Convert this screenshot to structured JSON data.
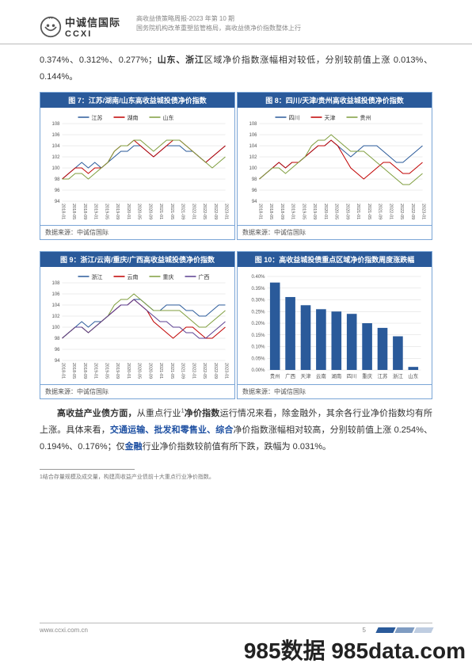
{
  "header": {
    "logo_cn": "中诚信国际",
    "logo_en": "CCXI",
    "line1": "高收益债策略周报-2023 年第 10 期",
    "line2": "国务院机构改革重塑监管格局，高收益债净价指数整体上行"
  },
  "para1": {
    "prefix": "0.374%、0.312%、0.277%；",
    "bold1": "山东、浙江",
    "mid": "区域净价指数涨幅相对较低，分别较前值上涨 0.013%、0.144%。"
  },
  "charts_top": [
    {
      "title": "图 7：江苏/湖南/山东高收益城投债净价指数",
      "type": "line",
      "ylim": [
        94,
        108
      ],
      "ytick_step": 2,
      "series": [
        {
          "name": "江苏",
          "color": "#2a5a9a",
          "vals": [
            98,
            99,
            100,
            101,
            100,
            101,
            100,
            101,
            102,
            103,
            103,
            104,
            104,
            103,
            102,
            103,
            104,
            104,
            104,
            103,
            103,
            102,
            101,
            102,
            103,
            104
          ]
        },
        {
          "name": "湖南",
          "color": "#c00000",
          "vals": [
            98,
            99,
            100,
            100,
            99,
            100,
            100,
            101,
            103,
            104,
            104,
            105,
            104,
            103,
            102,
            103,
            104,
            105,
            105,
            104,
            103,
            102,
            101,
            102,
            103,
            104
          ]
        },
        {
          "name": "山东",
          "color": "#7f9e3e",
          "vals": [
            98,
            98,
            99,
            99,
            98,
            99,
            100,
            101,
            103,
            104,
            104,
            105,
            105,
            104,
            103,
            104,
            105,
            105,
            105,
            104,
            103,
            102,
            101,
            100,
            101,
            102
          ]
        }
      ],
      "xticks": [
        "2018-01",
        "2018-05",
        "2018-09",
        "2019-01",
        "2019-05",
        "2019-09",
        "2020-01",
        "2020-05",
        "2020-09",
        "2021-01",
        "2021-05",
        "2021-09",
        "2022-01",
        "2022-05",
        "2022-09",
        "2023-01"
      ],
      "source": "数据来源：中诚信国际",
      "grid_color": "#d8d8d8",
      "bg": "#ffffff",
      "tick_fontsize": 7
    },
    {
      "title": "图 8：四川/天津/贵州高收益城投债净价指数",
      "type": "line",
      "ylim": [
        94,
        108
      ],
      "ytick_step": 2,
      "series": [
        {
          "name": "四川",
          "color": "#2a5a9a",
          "vals": [
            98,
            99,
            100,
            101,
            100,
            101,
            101,
            102,
            103,
            104,
            104,
            105,
            104,
            103,
            102,
            103,
            104,
            104,
            104,
            103,
            102,
            101,
            101,
            102,
            103,
            104
          ]
        },
        {
          "name": "天津",
          "color": "#c00000",
          "vals": [
            98,
            99,
            100,
            101,
            100,
            101,
            101,
            102,
            103,
            104,
            104,
            105,
            104,
            102,
            100,
            99,
            98,
            99,
            100,
            101,
            101,
            100,
            99,
            99,
            100,
            101
          ]
        },
        {
          "name": "贵州",
          "color": "#7f9e3e",
          "vals": [
            98,
            99,
            100,
            100,
            99,
            100,
            101,
            102,
            104,
            105,
            105,
            106,
            105,
            104,
            103,
            103,
            103,
            102,
            101,
            100,
            99,
            98,
            97,
            97,
            98,
            99
          ]
        }
      ],
      "xticks": [
        "2018-01",
        "2018-05",
        "2018-09",
        "2019-01",
        "2019-05",
        "2019-09",
        "2020-01",
        "2020-05",
        "2020-09",
        "2021-01",
        "2021-05",
        "2021-09",
        "2022-01",
        "2022-05",
        "2022-09",
        "2023-01"
      ],
      "source": "数据来源：中诚信国际",
      "grid_color": "#d8d8d8",
      "bg": "#ffffff"
    }
  ],
  "charts_bottom": [
    {
      "title": "图 9：浙江/云南/重庆/广西高收益城投债净价指数",
      "type": "line",
      "ylim": [
        94,
        108
      ],
      "ytick_step": 2,
      "series": [
        {
          "name": "浙江",
          "color": "#2a5a9a",
          "vals": [
            98,
            99,
            100,
            101,
            100,
            101,
            101,
            102,
            103,
            104,
            104,
            105,
            105,
            104,
            103,
            103,
            104,
            104,
            104,
            103,
            103,
            102,
            102,
            103,
            104,
            104
          ]
        },
        {
          "name": "云南",
          "color": "#c00000",
          "vals": [
            98,
            99,
            100,
            100,
            99,
            100,
            101,
            102,
            103,
            104,
            104,
            105,
            104,
            103,
            101,
            100,
            99,
            98,
            99,
            100,
            100,
            99,
            98,
            98,
            99,
            100
          ]
        },
        {
          "name": "重庆",
          "color": "#7f9e3e",
          "vals": [
            98,
            99,
            100,
            100,
            99,
            100,
            101,
            102,
            104,
            105,
            105,
            106,
            105,
            104,
            103,
            103,
            103,
            103,
            103,
            102,
            101,
            100,
            100,
            101,
            102,
            103
          ]
        },
        {
          "name": "广西",
          "color": "#5b3f91",
          "vals": [
            98,
            99,
            100,
            100,
            99,
            100,
            101,
            102,
            103,
            104,
            104,
            105,
            104,
            103,
            102,
            101,
            101,
            100,
            100,
            99,
            99,
            98,
            98,
            99,
            100,
            101
          ]
        }
      ],
      "xticks": [
        "2018-01",
        "2018-05",
        "2018-09",
        "2019-01",
        "2019-05",
        "2019-09",
        "2020-01",
        "2020-05",
        "2020-09",
        "2021-01",
        "2021-05",
        "2021-09",
        "2022-01",
        "2022-05",
        "2022-09",
        "2023-01"
      ],
      "source": "数据来源：中诚信国际",
      "grid_color": "#d8d8d8",
      "bg": "#ffffff"
    },
    {
      "title": "图 10：高收益城投债重点区域净价指数周度涨跌幅",
      "type": "bar",
      "ylim": [
        0,
        0.4
      ],
      "ytick_step": 0.05,
      "categories": [
        "贵州",
        "广西",
        "天津",
        "云南",
        "湖南",
        "四川",
        "重庆",
        "江苏",
        "浙江",
        "山东"
      ],
      "values": [
        0.374,
        0.312,
        0.277,
        0.26,
        0.25,
        0.24,
        0.2,
        0.18,
        0.144,
        0.013
      ],
      "bar_color": "#2a5a9a",
      "bar_width": 0.65,
      "source": "数据来源：中诚信国际",
      "grid_color": "#d8d8d8",
      "bg": "#ffffff",
      "ylabel_suffix": "%"
    }
  ],
  "para2": {
    "t1": "高收益产业债方面，",
    "t2": "从重点行业",
    "sup": "1",
    "t3": "净价指数",
    "t4": "运行情况来看，除金融外，其余各行业净价指数均有所上涨。具体来看，",
    "t5": "交通运输、批发和零售业、综合",
    "t6": "净价指数涨幅相对较高，分别较前值上涨 0.254%、0.194%、0.176%；仅",
    "t7": "金融",
    "t8": "行业净价指数较前值有所下跌，跌幅为 0.031%。"
  },
  "footnote": "1结合存量规模及成交量，构建高收益产业债前十大重点行业净价指数。",
  "footer": {
    "url": "www.ccxi.com.cn",
    "page": "5"
  },
  "watermark": "985数据 985data.com"
}
